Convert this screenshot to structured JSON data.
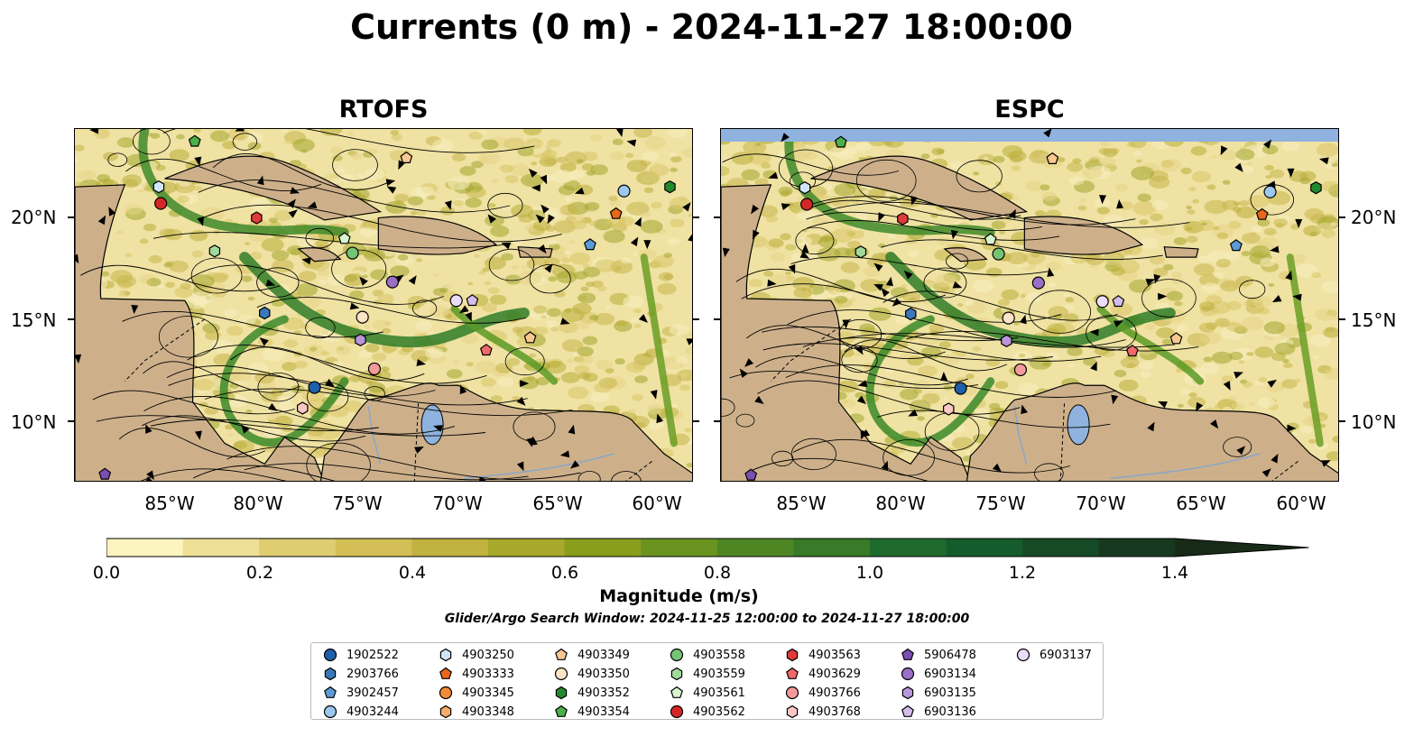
{
  "title": "Currents (0 m) - 2024-11-27 18:00:00",
  "panels": [
    {
      "title": "RTOFS"
    },
    {
      "title": "ESPC"
    }
  ],
  "axes": {
    "lat_ticks": [
      "20°N",
      "15°N",
      "10°N"
    ],
    "lon_ticks": [
      "85°W",
      "80°W",
      "75°W",
      "70°W",
      "65°W",
      "60°W"
    ]
  },
  "colorbar": {
    "label": "Magnitude (m/s)",
    "ticks": [
      "0.0",
      "0.2",
      "0.4",
      "0.6",
      "0.8",
      "1.0",
      "1.2",
      "1.4"
    ],
    "colors": [
      "#fbf4c0",
      "#eedf97",
      "#e0cd72",
      "#d3bf55",
      "#c2b240",
      "#a8a82c",
      "#8a9e1e",
      "#6a9320",
      "#4f8624",
      "#387a27",
      "#1f6b2e",
      "#155c2c",
      "#164a26",
      "#18391f",
      "#172b18"
    ]
  },
  "window_text": "Glider/Argo Search Window: 2024-11-25 12:00:00 to 2024-11-27 18:00:00",
  "legend": [
    {
      "id": "1902522",
      "marker": "circle",
      "color": "#1f5fa8"
    },
    {
      "id": "2903766",
      "marker": "hexagon",
      "color": "#3a78b8"
    },
    {
      "id": "3902457",
      "marker": "pentagon",
      "color": "#5b9bd5"
    },
    {
      "id": "4903244",
      "marker": "circle",
      "color": "#9cc7ee"
    },
    {
      "id": "4903250",
      "marker": "hexagon",
      "color": "#cfe6fa"
    },
    {
      "id": "4903333",
      "marker": "pentagon",
      "color": "#e8671a"
    },
    {
      "id": "4903345",
      "marker": "circle",
      "color": "#f08c38"
    },
    {
      "id": "4903348",
      "marker": "hexagon",
      "color": "#f6ad66"
    },
    {
      "id": "4903349",
      "marker": "pentagon",
      "color": "#f9c792"
    },
    {
      "id": "4903350",
      "marker": "circle",
      "color": "#fde3c8"
    },
    {
      "id": "4903352",
      "marker": "hexagon",
      "color": "#22892e"
    },
    {
      "id": "4903354",
      "marker": "pentagon",
      "color": "#4daf4a"
    },
    {
      "id": "4903558",
      "marker": "circle",
      "color": "#74c476"
    },
    {
      "id": "4903559",
      "marker": "hexagon",
      "color": "#a1d99b"
    },
    {
      "id": "4903561",
      "marker": "pentagon",
      "color": "#d6f5cf"
    },
    {
      "id": "4903562",
      "marker": "circle",
      "color": "#d62728"
    },
    {
      "id": "4903563",
      "marker": "hexagon",
      "color": "#de3b3b"
    },
    {
      "id": "4903629",
      "marker": "pentagon",
      "color": "#ef6969"
    },
    {
      "id": "4903766",
      "marker": "circle",
      "color": "#f39a9a"
    },
    {
      "id": "4903768",
      "marker": "hexagon",
      "color": "#f9c6c6"
    },
    {
      "id": "5906478",
      "marker": "pentagon",
      "color": "#7b4fb0"
    },
    {
      "id": "6903134",
      "marker": "circle",
      "color": "#9b6fc6"
    },
    {
      "id": "6903135",
      "marker": "hexagon",
      "color": "#b995da"
    },
    {
      "id": "6903136",
      "marker": "pentagon",
      "color": "#d4bcec"
    },
    {
      "id": "6903137",
      "marker": "circle",
      "color": "#ecdcf8"
    }
  ],
  "floats": [
    {
      "id": "4903250",
      "lon": -85.3,
      "lat": 21.4
    },
    {
      "id": "4903562",
      "lon": -85.2,
      "lat": 20.6
    },
    {
      "id": "4903354",
      "lon": -83.5,
      "lat": 23.6
    },
    {
      "id": "4903563",
      "lon": -80.4,
      "lat": 19.9
    },
    {
      "id": "4903559",
      "lon": -82.5,
      "lat": 18.3
    },
    {
      "id": "4903561",
      "lon": -76.0,
      "lat": 18.9
    },
    {
      "id": "4903558",
      "lon": -75.6,
      "lat": 18.2
    },
    {
      "id": "4903349",
      "lon": -72.9,
      "lat": 22.8
    },
    {
      "id": "6903134",
      "lon": -73.6,
      "lat": 16.8
    },
    {
      "id": "1902522",
      "lon": -77.5,
      "lat": 11.7
    },
    {
      "id": "2903766",
      "lon": -80.0,
      "lat": 15.3
    },
    {
      "id": "4903350",
      "lon": -75.1,
      "lat": 15.1
    },
    {
      "id": "6903135",
      "lon": -75.2,
      "lat": 14.0
    },
    {
      "id": "4903766",
      "lon": -74.5,
      "lat": 12.6
    },
    {
      "id": "4903768",
      "lon": -78.1,
      "lat": 10.7
    },
    {
      "id": "6903137",
      "lon": -70.4,
      "lat": 15.9
    },
    {
      "id": "6903136",
      "lon": -69.6,
      "lat": 15.9
    },
    {
      "id": "4903629",
      "lon": -68.9,
      "lat": 13.5
    },
    {
      "id": "4903349",
      "lon": -66.7,
      "lat": 14.1
    },
    {
      "id": "3902457",
      "lon": -63.7,
      "lat": 18.6
    },
    {
      "id": "4903333",
      "lon": -62.4,
      "lat": 20.1
    },
    {
      "id": "4903244",
      "lon": -62.0,
      "lat": 21.2
    },
    {
      "id": "4903352",
      "lon": -59.7,
      "lat": 21.4
    },
    {
      "id": "5906478",
      "lon": -88.0,
      "lat": 7.5
    }
  ]
}
